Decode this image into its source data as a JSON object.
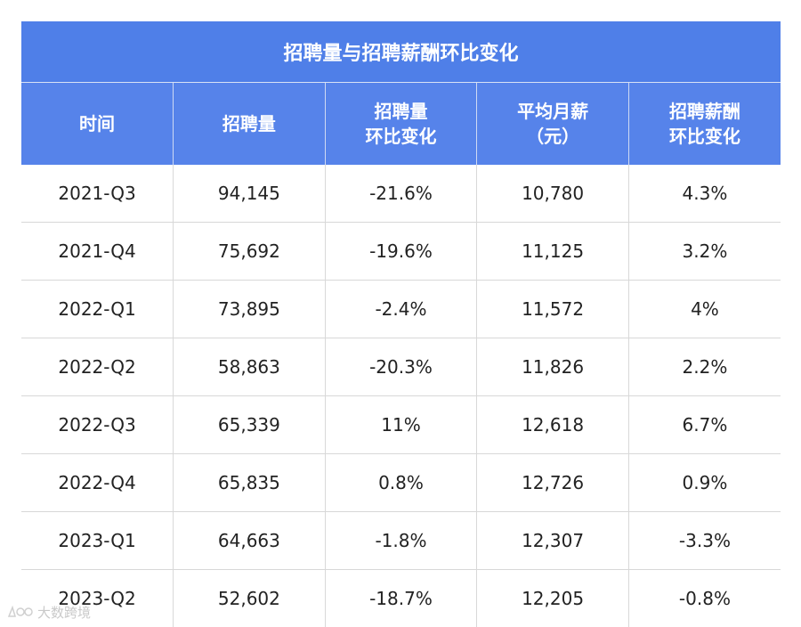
{
  "chart_data": {
    "type": "table",
    "title": "招聘量与招聘薪酬环比变化",
    "columns": [
      [
        "时间"
      ],
      [
        "招聘量"
      ],
      [
        "招聘量",
        "环比变化"
      ],
      [
        "平均月薪",
        "（元）"
      ],
      [
        "招聘薪酬",
        "环比变化"
      ]
    ],
    "rows": [
      [
        "2021-Q3",
        "94,145",
        "-21.6%",
        "10,780",
        "4.3%"
      ],
      [
        "2021-Q4",
        "75,692",
        "-19.6%",
        "11,125",
        "3.2%"
      ],
      [
        "2022-Q1",
        "73,895",
        "-2.4%",
        "11,572",
        "4%"
      ],
      [
        "2022-Q2",
        "58,863",
        "-20.3%",
        "11,826",
        "2.2%"
      ],
      [
        "2022-Q3",
        "65,339",
        "11%",
        "12,618",
        "6.7%"
      ],
      [
        "2022-Q4",
        "65,835",
        "0.8%",
        "12,726",
        "0.9%"
      ],
      [
        "2023-Q1",
        "64,663",
        "-1.8%",
        "12,307",
        "-3.3%"
      ],
      [
        "2023-Q2",
        "52,602",
        "-18.7%",
        "12,205",
        "-0.8%"
      ]
    ]
  },
  "colors": {
    "title_bg": "#4f7fe8",
    "header_bg": "#5683ea",
    "grid": "#d8d8d8"
  },
  "watermark": {
    "text": "大数跨境",
    "icon": "brand-logo-icon"
  }
}
